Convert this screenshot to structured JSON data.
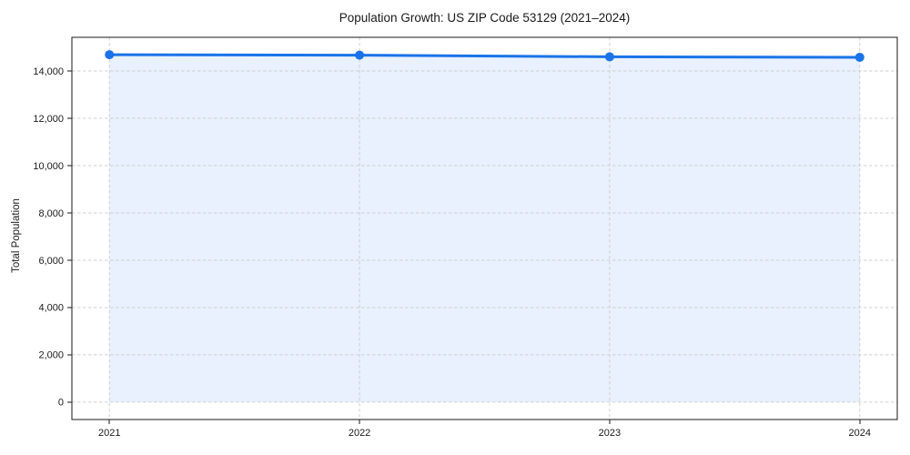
{
  "figure": {
    "title": "Population Growth: US ZIP Code 53129 (2021–2024)",
    "ylabel": "Total Population"
  },
  "chart_data": {
    "type": "line",
    "title": "Population Growth: US ZIP Code 53129 (2021–2024)",
    "xlabel": "",
    "ylabel": "Total Population",
    "x": [
      2021,
      2022,
      2023,
      2024
    ],
    "series": [
      {
        "name": "Total Population",
        "values": [
          14690,
          14670,
          14600,
          14580
        ]
      }
    ],
    "area_fill_to_zero": true,
    "marker": "circle",
    "xlim": [
      2020.85,
      2024.15
    ],
    "ylim": [
      -734,
      15424
    ],
    "xticks": [
      2021,
      2022,
      2023,
      2024
    ],
    "xtick_labels": [
      "2021",
      "2022",
      "2023",
      "2024"
    ],
    "yticks": [
      0,
      2000,
      4000,
      6000,
      8000,
      10000,
      12000,
      14000
    ],
    "ytick_labels": [
      "0",
      "2,000",
      "4,000",
      "6,000",
      "8,000",
      "10,000",
      "12,000",
      "14,000"
    ],
    "grid": true,
    "grid_style": "dashed",
    "legend": "none",
    "colors": {
      "line": "#1a73e8",
      "marker": "#1a73e8",
      "area_fill": "#e8f1fd",
      "grid": "#c9c9c9",
      "spine": "#1a1a1a",
      "tick_label": "#1a1a1a"
    }
  }
}
